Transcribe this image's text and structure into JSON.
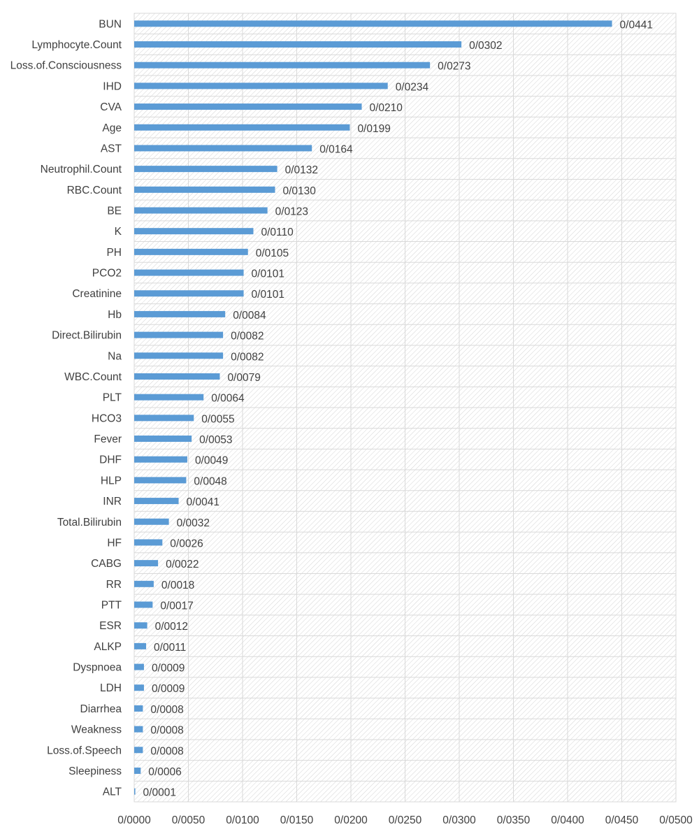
{
  "chart_data": {
    "type": "bar",
    "orientation": "horizontal",
    "categories": [
      "BUN",
      "Lymphocyte.Count",
      "Loss.of.Consciousness",
      "IHD",
      "CVA",
      "Age",
      "AST",
      "Neutrophil.Count",
      "RBC.Count",
      "BE",
      "K",
      "PH",
      "PCO2",
      "Creatinine",
      "Hb",
      "Direct.Bilirubin",
      "Na",
      "WBC.Count",
      "PLT",
      "HCO3",
      "Fever",
      "DHF",
      "HLP",
      "INR",
      "Total.Bilirubin",
      "HF",
      "CABG",
      "RR",
      "PTT",
      "ESR",
      "ALKP",
      "Dyspnoea",
      "LDH",
      "Diarrhea",
      "Weakness",
      "Loss.of.Speech",
      "Sleepiness",
      "ALT"
    ],
    "values": [
      0.0441,
      0.0302,
      0.0273,
      0.0234,
      0.021,
      0.0199,
      0.0164,
      0.0132,
      0.013,
      0.0123,
      0.011,
      0.0105,
      0.0101,
      0.0101,
      0.0084,
      0.0082,
      0.0082,
      0.0079,
      0.0064,
      0.0055,
      0.0053,
      0.0049,
      0.0048,
      0.0041,
      0.0032,
      0.0026,
      0.0022,
      0.0018,
      0.0017,
      0.0012,
      0.0011,
      0.0009,
      0.0009,
      0.0008,
      0.0008,
      0.0008,
      0.0006,
      0.0001
    ],
    "value_labels": [
      "0/0441",
      "0/0302",
      "0/0273",
      "0/0234",
      "0/0210",
      "0/0199",
      "0/0164",
      "0/0132",
      "0/0130",
      "0/0123",
      "0/0110",
      "0/0105",
      "0/0101",
      "0/0101",
      "0/0084",
      "0/0082",
      "0/0082",
      "0/0079",
      "0/0064",
      "0/0055",
      "0/0053",
      "0/0049",
      "0/0048",
      "0/0041",
      "0/0032",
      "0/0026",
      "0/0022",
      "0/0018",
      "0/0017",
      "0/0012",
      "0/0011",
      "0/0009",
      "0/0009",
      "0/0008",
      "0/0008",
      "0/0008",
      "0/0006",
      "0/0001"
    ],
    "xlim": [
      0,
      0.05
    ],
    "x_ticks": [
      0,
      0.005,
      0.01,
      0.015,
      0.02,
      0.025,
      0.03,
      0.035,
      0.04,
      0.045,
      0.05
    ],
    "x_tick_labels": [
      "0/0000",
      "0/0050",
      "0/0100",
      "0/0150",
      "0/0200",
      "0/0250",
      "0/0300",
      "0/0350",
      "0/0400",
      "0/0450",
      "0/0500"
    ],
    "title": "",
    "xlabel": "",
    "ylabel": "",
    "grid": true,
    "legend": false,
    "bar_color": "#5b9bd5",
    "plot_background": "hatched"
  }
}
